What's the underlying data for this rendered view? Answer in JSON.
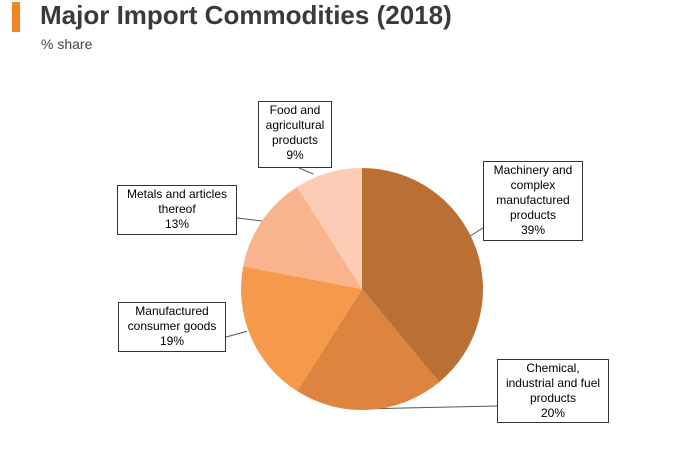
{
  "header": {
    "title": "Major Import Commodities (2018)",
    "subtitle": "% share",
    "accent_color": "#f08526"
  },
  "chart_data": {
    "type": "pie",
    "title": "Major Import Commodities (2018)",
    "unit": "% share",
    "start": "12 o'clock",
    "direction": "clockwise",
    "slices": [
      {
        "label": "Machinery and complex manufactured products",
        "lines": [
          "Machinery and",
          "complex",
          "manufactured",
          "products"
        ],
        "value": 39,
        "display": "39%",
        "color": "#ba7034"
      },
      {
        "label": "Chemical, industrial and fuel products",
        "lines": [
          "Chemical,",
          "industrial and fuel",
          "products"
        ],
        "value": 20,
        "display": "20%",
        "color": "#dd8540"
      },
      {
        "label": "Manufactured consumer goods",
        "lines": [
          "Manufactured",
          "consumer goods"
        ],
        "value": 19,
        "display": "19%",
        "color": "#f7994a"
      },
      {
        "label": "Metals and articles thereof",
        "lines": [
          "Metals and articles",
          "thereof"
        ],
        "value": 13,
        "display": "13%",
        "color": "#f9b48d"
      },
      {
        "label": "Food and agricultural products",
        "lines": [
          "Food and",
          "agricultural",
          "products"
        ],
        "value": 9,
        "display": "9%",
        "color": "#fcccb6"
      }
    ]
  }
}
